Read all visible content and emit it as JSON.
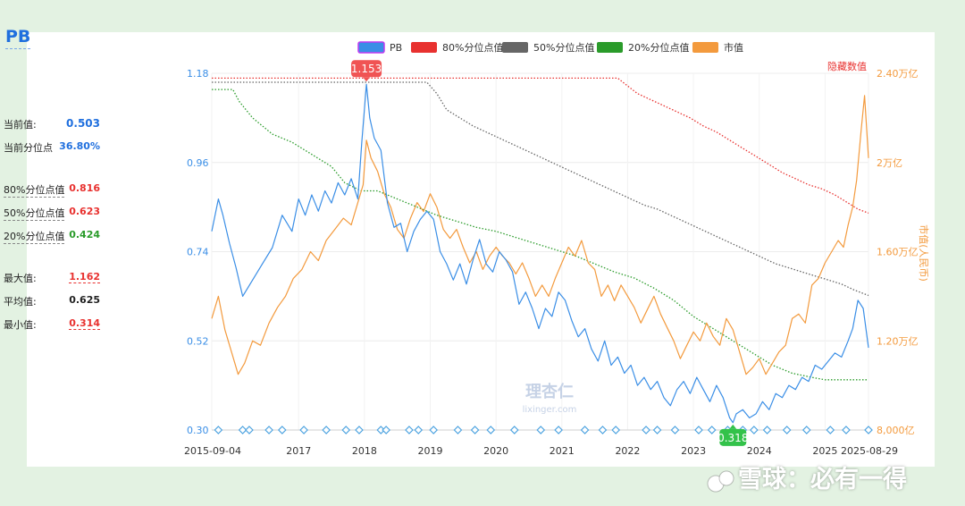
{
  "sidebar": {
    "title": "PB",
    "current_value_label": "当前值:",
    "current_value": "0.503",
    "current_percentile_label": "当前分位点",
    "current_percentile": "36.80%",
    "p80_label": "80%分位点值",
    "p80_value": "0.816",
    "p50_label": "50%分位点值",
    "p50_value": "0.623",
    "p20_label": "20%分位点值",
    "p20_value": "0.424",
    "max_label": "最大值:",
    "max_value": "1.162",
    "avg_label": "平均值:",
    "avg_value": "0.625",
    "min_label": "最小值:",
    "min_value": "0.314"
  },
  "colors": {
    "pb": "#3a8ee6",
    "p80": "#e8312f",
    "p50": "#666666",
    "p20": "#2a9b2a",
    "mcap": "#f39a3d",
    "left_axis": "#3a8ee6",
    "right_axis": "#f39a3d",
    "max_badge": "#f05454",
    "min_badge": "#33c24a",
    "value_blue": "#1f6fde",
    "value_red": "#e8312f",
    "value_green": "#2a9b2a",
    "value_black": "#222222"
  },
  "chart_data": {
    "type": "line",
    "legend": [
      "PB",
      "80%分位点值",
      "50%分位点值",
      "20%分位点值",
      "市值"
    ],
    "legend_position": "top",
    "hide_label": "隐藏数值",
    "right_axis_title": "市值(人民币)",
    "x_ticks": [
      "2015-09-04",
      "2017",
      "2018",
      "2019",
      "2020",
      "2021",
      "2022",
      "2023",
      "2024",
      "2025",
      "2025-08-29"
    ],
    "x_range": [
      2015.68,
      2025.66
    ],
    "y_left_ticks": [
      "0.30",
      "0.52",
      "0.74",
      "0.96",
      "1.18"
    ],
    "y_left_range": [
      0.3,
      1.18
    ],
    "y_right_ticks": [
      "8,000亿",
      "1.20万亿",
      "1.60万亿",
      "2万亿",
      "2.40万亿"
    ],
    "y_right_range": [
      0.8,
      2.4
    ],
    "max_marker": {
      "x": 2018.03,
      "y": 1.153,
      "label": "1.153"
    },
    "min_marker": {
      "x": 2023.6,
      "y": 0.318,
      "label": "0.318"
    },
    "event_markers_x": [
      2015.78,
      2016.15,
      2016.25,
      2016.55,
      2016.75,
      2017.08,
      2017.42,
      2017.72,
      2017.92,
      2018.25,
      2018.33,
      2018.68,
      2018.82,
      2019.05,
      2019.42,
      2019.68,
      2019.92,
      2020.28,
      2020.68,
      2020.95,
      2021.35,
      2021.62,
      2021.82,
      2022.28,
      2022.45,
      2022.72,
      2023.08,
      2023.28,
      2023.52,
      2023.75,
      2023.92,
      2024.12,
      2024.42,
      2024.72,
      2025.08,
      2025.32,
      2025.66
    ],
    "series": [
      {
        "name": "PB",
        "x": [
          2015.68,
          2015.78,
          2015.85,
          2015.95,
          2016.05,
          2016.15,
          2016.3,
          2016.45,
          2016.6,
          2016.75,
          2016.9,
          2017.0,
          2017.1,
          2017.2,
          2017.3,
          2017.4,
          2017.5,
          2017.6,
          2017.7,
          2017.8,
          2017.9,
          2017.96,
          2018.03,
          2018.08,
          2018.15,
          2018.25,
          2018.35,
          2018.45,
          2018.55,
          2018.65,
          2018.75,
          2018.85,
          2018.95,
          2019.05,
          2019.15,
          2019.25,
          2019.35,
          2019.45,
          2019.55,
          2019.65,
          2019.75,
          2019.85,
          2019.95,
          2020.05,
          2020.15,
          2020.25,
          2020.35,
          2020.45,
          2020.55,
          2020.65,
          2020.75,
          2020.85,
          2020.95,
          2021.05,
          2021.15,
          2021.25,
          2021.35,
          2021.45,
          2021.55,
          2021.65,
          2021.75,
          2021.85,
          2021.95,
          2022.05,
          2022.15,
          2022.25,
          2022.35,
          2022.45,
          2022.55,
          2022.65,
          2022.75,
          2022.85,
          2022.95,
          2023.05,
          2023.15,
          2023.25,
          2023.35,
          2023.45,
          2023.55,
          2023.6,
          2023.65,
          2023.75,
          2023.85,
          2023.95,
          2024.05,
          2024.15,
          2024.25,
          2024.35,
          2024.45,
          2024.55,
          2024.65,
          2024.75,
          2024.85,
          2024.95,
          2025.05,
          2025.15,
          2025.25,
          2025.35,
          2025.42,
          2025.5,
          2025.58,
          2025.66
        ],
        "values": [
          0.79,
          0.87,
          0.83,
          0.76,
          0.7,
          0.63,
          0.67,
          0.71,
          0.75,
          0.83,
          0.79,
          0.87,
          0.83,
          0.88,
          0.84,
          0.89,
          0.86,
          0.91,
          0.88,
          0.92,
          0.87,
          1.01,
          1.153,
          1.07,
          1.02,
          0.99,
          0.86,
          0.8,
          0.81,
          0.74,
          0.79,
          0.82,
          0.84,
          0.82,
          0.74,
          0.71,
          0.67,
          0.71,
          0.66,
          0.72,
          0.77,
          0.71,
          0.69,
          0.74,
          0.72,
          0.69,
          0.61,
          0.64,
          0.6,
          0.55,
          0.6,
          0.58,
          0.64,
          0.62,
          0.57,
          0.53,
          0.55,
          0.5,
          0.47,
          0.52,
          0.46,
          0.48,
          0.44,
          0.46,
          0.41,
          0.43,
          0.4,
          0.42,
          0.38,
          0.36,
          0.4,
          0.42,
          0.39,
          0.43,
          0.4,
          0.37,
          0.41,
          0.38,
          0.33,
          0.318,
          0.34,
          0.35,
          0.33,
          0.34,
          0.37,
          0.35,
          0.39,
          0.38,
          0.41,
          0.4,
          0.43,
          0.42,
          0.46,
          0.45,
          0.47,
          0.49,
          0.48,
          0.52,
          0.55,
          0.62,
          0.6,
          0.503
        ]
      },
      {
        "name": "80%分位点值",
        "x": [
          2015.68,
          2021.85,
          2021.95,
          2022.15,
          2022.35,
          2022.55,
          2022.75,
          2022.95,
          2023.15,
          2023.35,
          2023.55,
          2023.75,
          2023.95,
          2024.15,
          2024.35,
          2024.55,
          2024.75,
          2024.95,
          2025.15,
          2025.35,
          2025.5,
          2025.66
        ],
        "values": [
          1.168,
          1.168,
          1.155,
          1.13,
          1.115,
          1.1,
          1.085,
          1.07,
          1.05,
          1.035,
          1.015,
          0.995,
          0.975,
          0.955,
          0.935,
          0.92,
          0.905,
          0.895,
          0.88,
          0.86,
          0.845,
          0.835
        ]
      },
      {
        "name": "50%分位点值",
        "x": [
          2015.68,
          2018.95,
          2019.1,
          2019.25,
          2019.45,
          2019.65,
          2019.85,
          2020.05,
          2020.25,
          2020.45,
          2020.65,
          2020.85,
          2021.05,
          2021.25,
          2021.45,
          2021.65,
          2021.85,
          2022.05,
          2022.25,
          2022.45,
          2022.65,
          2022.85,
          2023.05,
          2023.25,
          2023.45,
          2023.65,
          2023.85,
          2024.05,
          2024.25,
          2024.45,
          2024.65,
          2024.85,
          2025.05,
          2025.25,
          2025.45,
          2025.66
        ],
        "values": [
          1.158,
          1.158,
          1.13,
          1.09,
          1.07,
          1.05,
          1.035,
          1.02,
          1.005,
          0.99,
          0.975,
          0.96,
          0.945,
          0.93,
          0.915,
          0.9,
          0.885,
          0.87,
          0.855,
          0.845,
          0.83,
          0.815,
          0.8,
          0.785,
          0.77,
          0.755,
          0.74,
          0.725,
          0.71,
          0.7,
          0.69,
          0.68,
          0.67,
          0.66,
          0.645,
          0.632
        ]
      },
      {
        "name": "20%分位点值",
        "x": [
          2015.68,
          2016.0,
          2016.1,
          2016.3,
          2016.6,
          2016.9,
          2017.2,
          2017.5,
          2017.7,
          2017.95,
          2018.2,
          2018.5,
          2018.8,
          2019.1,
          2019.4,
          2019.7,
          2020.0,
          2020.3,
          2020.6,
          2020.9,
          2021.2,
          2021.5,
          2021.8,
          2022.1,
          2022.4,
          2022.7,
          2023.0,
          2023.3,
          2023.6,
          2023.9,
          2024.2,
          2024.5,
          2024.8,
          2025.0,
          2025.66
        ],
        "values": [
          1.14,
          1.14,
          1.11,
          1.07,
          1.03,
          1.01,
          0.98,
          0.95,
          0.91,
          0.89,
          0.89,
          0.87,
          0.85,
          0.83,
          0.815,
          0.8,
          0.79,
          0.775,
          0.76,
          0.745,
          0.73,
          0.71,
          0.69,
          0.675,
          0.65,
          0.62,
          0.58,
          0.55,
          0.52,
          0.49,
          0.46,
          0.44,
          0.43,
          0.424,
          0.424
        ]
      },
      {
        "name": "市值",
        "axis": "right",
        "x": [
          2015.68,
          2015.78,
          2015.88,
          2015.98,
          2016.08,
          2016.18,
          2016.3,
          2016.42,
          2016.55,
          2016.68,
          2016.8,
          2016.92,
          2017.05,
          2017.18,
          2017.3,
          2017.42,
          2017.55,
          2017.68,
          2017.8,
          2017.9,
          2017.98,
          2018.03,
          2018.1,
          2018.2,
          2018.3,
          2018.4,
          2018.5,
          2018.6,
          2018.7,
          2018.8,
          2018.9,
          2019.0,
          2019.1,
          2019.2,
          2019.3,
          2019.4,
          2019.5,
          2019.6,
          2019.7,
          2019.8,
          2019.9,
          2020.0,
          2020.1,
          2020.2,
          2020.3,
          2020.4,
          2020.5,
          2020.6,
          2020.7,
          2020.8,
          2020.9,
          2021.0,
          2021.1,
          2021.2,
          2021.3,
          2021.4,
          2021.5,
          2021.6,
          2021.7,
          2021.8,
          2021.9,
          2022.0,
          2022.1,
          2022.2,
          2022.3,
          2022.4,
          2022.5,
          2022.6,
          2022.7,
          2022.8,
          2022.9,
          2023.0,
          2023.1,
          2023.2,
          2023.3,
          2023.4,
          2023.5,
          2023.6,
          2023.7,
          2023.8,
          2023.9,
          2024.0,
          2024.1,
          2024.2,
          2024.3,
          2024.4,
          2024.5,
          2024.6,
          2024.7,
          2024.8,
          2024.9,
          2025.0,
          2025.1,
          2025.2,
          2025.28,
          2025.35,
          2025.42,
          2025.48,
          2025.55,
          2025.6,
          2025.66
        ],
        "values": [
          1.3,
          1.4,
          1.25,
          1.15,
          1.05,
          1.1,
          1.2,
          1.18,
          1.28,
          1.35,
          1.4,
          1.48,
          1.52,
          1.6,
          1.56,
          1.65,
          1.7,
          1.75,
          1.72,
          1.82,
          1.9,
          2.1,
          2.02,
          1.96,
          1.86,
          1.8,
          1.7,
          1.66,
          1.75,
          1.82,
          1.78,
          1.86,
          1.8,
          1.7,
          1.66,
          1.7,
          1.62,
          1.55,
          1.6,
          1.52,
          1.58,
          1.62,
          1.58,
          1.55,
          1.5,
          1.55,
          1.48,
          1.4,
          1.45,
          1.4,
          1.48,
          1.55,
          1.62,
          1.58,
          1.65,
          1.55,
          1.52,
          1.4,
          1.45,
          1.38,
          1.45,
          1.4,
          1.35,
          1.28,
          1.34,
          1.4,
          1.32,
          1.26,
          1.2,
          1.12,
          1.18,
          1.24,
          1.2,
          1.28,
          1.22,
          1.18,
          1.3,
          1.25,
          1.15,
          1.05,
          1.08,
          1.12,
          1.05,
          1.1,
          1.15,
          1.18,
          1.3,
          1.32,
          1.28,
          1.45,
          1.48,
          1.55,
          1.6,
          1.65,
          1.62,
          1.72,
          1.8,
          1.92,
          2.15,
          2.3,
          2.02
        ]
      }
    ]
  },
  "watermark_small": {
    "cn": "理杏仁",
    "en": "lixinger.com"
  },
  "watermark": {
    "text": "雪球：必有一得"
  }
}
